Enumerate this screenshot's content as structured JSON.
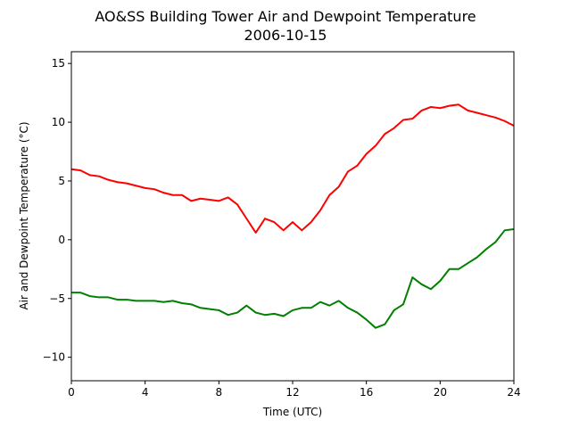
{
  "chart_data": {
    "type": "line",
    "title": "AO&SS Building Tower Air and Dewpoint Temperature",
    "subtitle": "2006-10-15",
    "x_label": "Time (UTC)",
    "y_label": "Air and Dewpoint Temperature (°C)",
    "x": [
      0,
      0.5,
      1,
      1.5,
      2,
      2.5,
      3,
      3.5,
      4,
      4.5,
      5,
      5.5,
      6,
      6.5,
      7,
      7.5,
      8,
      8.5,
      9,
      9.5,
      10,
      10.5,
      11,
      11.5,
      12,
      12.5,
      13,
      13.5,
      14,
      14.5,
      15,
      15.5,
      16,
      16.5,
      17,
      17.5,
      18,
      18.5,
      19,
      19.5,
      20,
      20.5,
      21,
      21.5,
      22,
      22.5,
      23,
      23.5,
      24
    ],
    "series": [
      {
        "color": "#ff0000",
        "values": [
          6.0,
          5.9,
          5.5,
          5.4,
          5.1,
          4.9,
          4.8,
          4.6,
          4.4,
          4.3,
          4.0,
          3.8,
          3.8,
          3.3,
          3.5,
          3.4,
          3.3,
          3.6,
          3.0,
          1.8,
          0.6,
          1.8,
          1.5,
          0.8,
          1.5,
          0.8,
          1.5,
          2.5,
          3.8,
          4.5,
          5.8,
          6.3,
          7.3,
          8.0,
          9.0,
          9.5,
          10.2,
          10.3,
          11.0,
          11.3,
          11.2,
          11.4,
          11.5,
          11.0,
          10.8,
          10.6,
          10.4,
          10.1,
          9.7
        ]
      },
      {
        "color": "#008000",
        "values": [
          -4.5,
          -4.5,
          -4.8,
          -4.9,
          -4.9,
          -5.1,
          -5.1,
          -5.2,
          -5.2,
          -5.2,
          -5.3,
          -5.2,
          -5.4,
          -5.5,
          -5.8,
          -5.9,
          -6.0,
          -6.4,
          -6.2,
          -5.6,
          -6.2,
          -6.4,
          -6.3,
          -6.5,
          -6.0,
          -5.8,
          -5.8,
          -5.3,
          -5.6,
          -5.2,
          -5.8,
          -6.2,
          -6.8,
          -7.5,
          -7.2,
          -6.0,
          -5.5,
          -3.2,
          -3.8,
          -4.2,
          -3.5,
          -2.5,
          -2.5,
          -2.0,
          -1.5,
          -0.8,
          -0.2,
          0.8,
          0.9
        ]
      }
    ],
    "xlim": [
      0,
      24
    ],
    "xticks": [
      0,
      4,
      8,
      12,
      16,
      20,
      24
    ],
    "ylim": [
      -12,
      16
    ],
    "yticks": [
      {
        "value": -10,
        "label": "−10"
      },
      {
        "value": -5,
        "label": "−5"
      },
      0,
      5,
      10,
      15
    ]
  }
}
